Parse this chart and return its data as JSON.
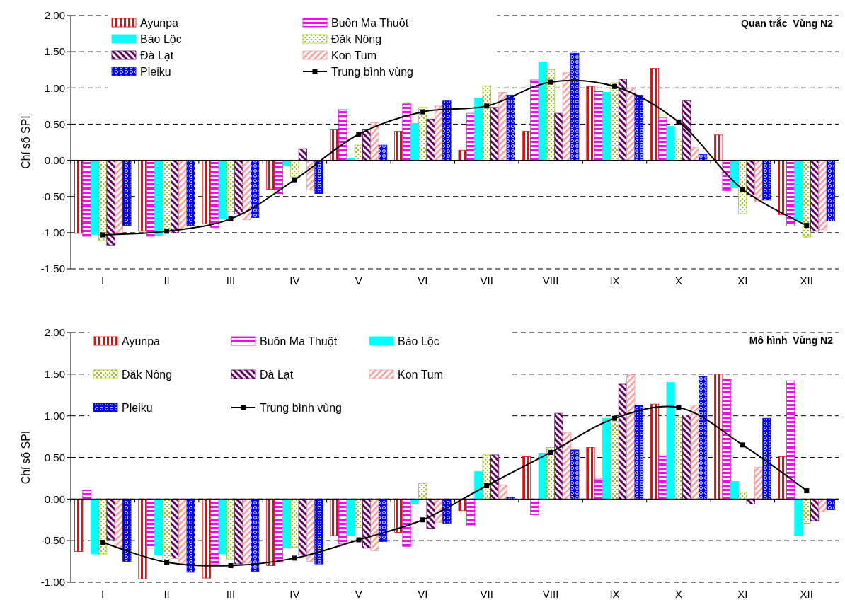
{
  "chart_data": [
    {
      "type": "bar",
      "title": "Quan trắc_Vùng N2",
      "ylabel": "Chỉ số SPI",
      "categories": [
        "I",
        "II",
        "III",
        "IV",
        "V",
        "VI",
        "VII",
        "VIII",
        "IX",
        "X",
        "XI",
        "XII"
      ],
      "ylim": [
        -1.5,
        2
      ],
      "yticks": [
        {
          "value": -1.5,
          "label": "-1.50"
        },
        {
          "value": -1,
          "label": "-1.00"
        },
        {
          "value": -0.5,
          "label": "-0.50"
        },
        {
          "value": 0,
          "label": "0.00"
        },
        {
          "value": 0.5,
          "label": "0.50"
        },
        {
          "value": 1,
          "label": "1.00"
        },
        {
          "value": 1.5,
          "label": "1.50"
        },
        {
          "value": 2,
          "label": "2.00"
        }
      ],
      "grid": "y",
      "legend": "top left",
      "series": [
        {
          "name": "Ayunpa",
          "color": "#ff0000",
          "values": [
            -1.01,
            -0.98,
            -0.88,
            -0.4,
            0.42,
            0.4,
            0.14,
            0.4,
            1.02,
            1.27,
            0.35,
            -0.75
          ]
        },
        {
          "name": "Buôn Ma Thuột",
          "color": "#ff00ff",
          "values": [
            -1.05,
            -1.05,
            -0.93,
            -0.48,
            0.7,
            0.78,
            0.65,
            1.11,
            0.96,
            0.59,
            -0.42,
            -0.91
          ]
        },
        {
          "name": "Bảo Lộc",
          "color": "#00ffff",
          "values": [
            -1.03,
            -1.04,
            -0.81,
            -0.08,
            0.03,
            0.51,
            0.86,
            1.36,
            0.94,
            0.47,
            -0.38,
            -0.83
          ]
        },
        {
          "name": "Đăk Nông",
          "color": "#99cc00",
          "values": [
            -1.11,
            -0.98,
            -0.71,
            -0.23,
            0.21,
            0.73,
            1.03,
            1.25,
            1.07,
            0.29,
            -0.74,
            -1.06
          ]
        },
        {
          "name": "Đà Lạt",
          "color": "#660066",
          "values": [
            -1.17,
            -1.0,
            -0.74,
            0.16,
            0.42,
            0.57,
            0.73,
            0.65,
            1.12,
            0.82,
            -0.48,
            -0.98
          ]
        },
        {
          "name": "Kon Tum",
          "color": "#ff9999",
          "values": [
            -1.0,
            -0.95,
            -0.82,
            -0.41,
            0.52,
            0.75,
            0.94,
            1.21,
            1.0,
            0.18,
            -0.57,
            -0.96
          ]
        },
        {
          "name": "Pleiku",
          "color": "#0000ff",
          "values": [
            -0.9,
            -0.9,
            -0.79,
            -0.46,
            0.21,
            0.82,
            0.9,
            1.48,
            0.9,
            0.08,
            -0.55,
            -0.84
          ]
        },
        {
          "name": "Trung bình vùng",
          "type": "line",
          "color": "#000000",
          "marker": "square",
          "values": [
            -1.03,
            -0.98,
            -0.81,
            -0.27,
            0.36,
            0.67,
            0.75,
            1.08,
            1.02,
            0.53,
            -0.4,
            -0.9
          ]
        }
      ]
    },
    {
      "type": "bar",
      "title": "Mô hình_Vùng N2",
      "ylabel": "Chỉ số SPI",
      "categories": [
        "I",
        "II",
        "III",
        "IV",
        "V",
        "VI",
        "VII",
        "VIII",
        "IX",
        "X",
        "XI",
        "XII"
      ],
      "ylim": [
        -1,
        2
      ],
      "yticks": [
        {
          "value": -1,
          "label": "-1.00"
        },
        {
          "value": -0.5,
          "label": "-0.50"
        },
        {
          "value": 0,
          "label": "0.00"
        },
        {
          "value": 0.5,
          "label": "0.50"
        },
        {
          "value": 1,
          "label": "1.00"
        },
        {
          "value": 1.5,
          "label": "1.50"
        },
        {
          "value": 2,
          "label": "2.00"
        }
      ],
      "grid": "y",
      "legend": "top left",
      "series": [
        {
          "name": "Ayunpa",
          "color": "#ff0000",
          "values": [
            -0.63,
            -0.96,
            -0.95,
            -0.8,
            -0.44,
            -0.4,
            -0.14,
            0.51,
            0.62,
            1.14,
            1.5,
            0.51
          ]
        },
        {
          "name": "Buôn Ma Thuột",
          "color": "#ff00ff",
          "values": [
            0.11,
            -0.59,
            -0.78,
            -0.76,
            -0.54,
            -0.57,
            -0.32,
            -0.19,
            0.24,
            0.52,
            1.44,
            1.42
          ]
        },
        {
          "name": "Bảo Lộc",
          "color": "#00ffff",
          "values": [
            -0.66,
            -0.67,
            -0.66,
            -0.59,
            -0.44,
            -0.06,
            0.33,
            0.55,
            0.97,
            1.4,
            0.21,
            -0.44
          ]
        },
        {
          "name": "Đăk Nông",
          "color": "#99cc00",
          "values": [
            -0.66,
            -0.75,
            -0.72,
            -0.58,
            -0.34,
            0.19,
            0.53,
            0.62,
            0.93,
            0.98,
            0.08,
            -0.29
          ]
        },
        {
          "name": "Đà Lạt",
          "color": "#660066",
          "values": [
            -0.49,
            -0.71,
            -0.78,
            -0.67,
            -0.59,
            -0.35,
            0.53,
            1.03,
            1.38,
            1.01,
            -0.06,
            -0.26
          ]
        },
        {
          "name": "Kon Tum",
          "color": "#ff9999",
          "values": [
            -0.58,
            -0.78,
            -0.77,
            -0.75,
            -0.62,
            -0.28,
            0.17,
            0.8,
            1.49,
            1.13,
            0.38,
            -0.15
          ]
        },
        {
          "name": "Pleiku",
          "color": "#0000ff",
          "values": [
            -0.75,
            -0.88,
            -0.87,
            -0.78,
            -0.51,
            -0.29,
            0.02,
            0.59,
            1.13,
            1.47,
            0.97,
            -0.13
          ]
        },
        {
          "name": "Trung bình vùng",
          "type": "line",
          "color": "#000000",
          "marker": "square",
          "values": [
            -0.52,
            -0.76,
            -0.8,
            -0.71,
            -0.49,
            -0.25,
            0.16,
            0.56,
            0.97,
            1.1,
            0.65,
            0.1
          ]
        }
      ]
    }
  ]
}
